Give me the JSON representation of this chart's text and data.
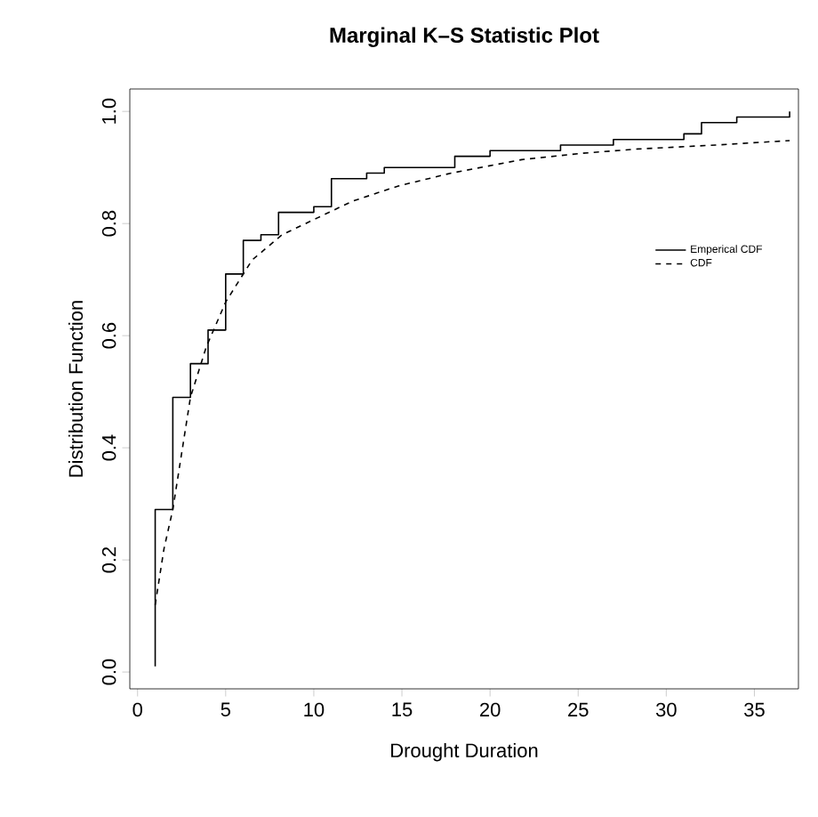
{
  "chart_data": {
    "type": "step",
    "title": "Marginal K–S Statistic Plot",
    "xlabel": "Drought Duration",
    "ylabel": "Distribution Function",
    "xlim": [
      -0.44,
      37.5
    ],
    "ylim": [
      -0.03,
      1.04
    ],
    "xticks": [
      0,
      5,
      10,
      15,
      20,
      25,
      30,
      35
    ],
    "yticks": [
      {
        "value": 0,
        "label": "0.0"
      },
      {
        "value": 0.2,
        "label": "0.2"
      },
      {
        "value": 0.4,
        "label": "0.4"
      },
      {
        "value": 0.6,
        "label": "0.6"
      },
      {
        "value": 0.8,
        "label": "0.8"
      },
      {
        "value": 1,
        "label": "1.0"
      }
    ],
    "grid": false,
    "legend": "right",
    "marker": "none",
    "series": [
      {
        "name": "Emperical CDF",
        "line_style": "solid",
        "color": "#000000",
        "x": [
          1,
          1,
          2,
          3,
          4,
          5,
          6,
          7,
          8,
          10,
          11,
          13,
          14,
          18,
          20,
          24,
          27,
          31,
          32,
          34,
          37
        ],
        "values": [
          0.01,
          0.29,
          0.49,
          0.55,
          0.61,
          0.71,
          0.77,
          0.78,
          0.82,
          0.83,
          0.88,
          0.89,
          0.9,
          0.92,
          0.93,
          0.94,
          0.95,
          0.96,
          0.98,
          0.99,
          1.0
        ]
      },
      {
        "name": "CDF",
        "type": "line",
        "line_style": "dashed",
        "color": "#000000",
        "x": [
          1,
          1.5,
          2,
          3,
          3.9,
          5,
          6.5,
          8.2,
          10.2,
          12.2,
          14.8,
          17.8,
          21.8,
          25.1,
          28.4,
          32.8,
          37
        ],
        "values": [
          0.12,
          0.22,
          0.29,
          0.49,
          0.58,
          0.66,
          0.735,
          0.78,
          0.81,
          0.84,
          0.867,
          0.89,
          0.914,
          0.925,
          0.933,
          0.94,
          0.948
        ]
      }
    ]
  }
}
